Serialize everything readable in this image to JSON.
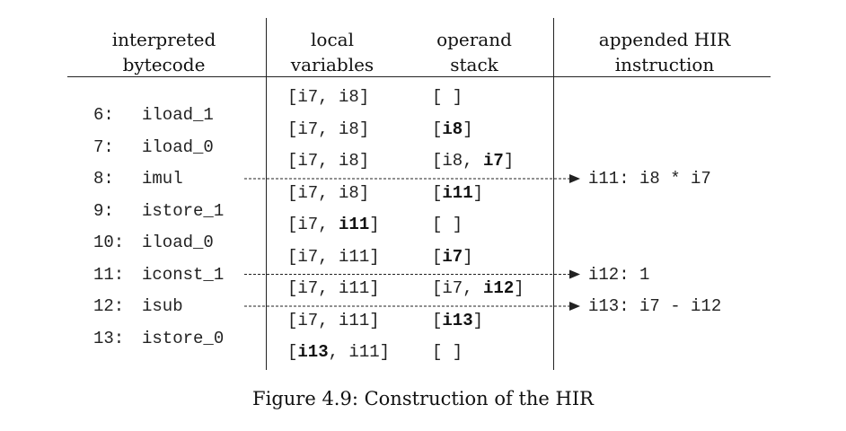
{
  "headers": {
    "bytecode": [
      "interpreted",
      "bytecode"
    ],
    "locals": [
      "local",
      "variables"
    ],
    "stack": [
      "operand",
      "stack"
    ],
    "hir": [
      "appended HIR",
      "instruction"
    ]
  },
  "bytecode": [
    {
      "idx": "6:",
      "op": "iload_1"
    },
    {
      "idx": "7:",
      "op": "iload_0"
    },
    {
      "idx": "8:",
      "op": "imul"
    },
    {
      "idx": "9:",
      "op": "istore_1"
    },
    {
      "idx": "10:",
      "op": "iload_0"
    },
    {
      "idx": "11:",
      "op": "iconst_1"
    },
    {
      "idx": "12:",
      "op": "isub"
    },
    {
      "idx": "13:",
      "op": "istore_0"
    }
  ],
  "states": [
    {
      "locals": [
        [
          "[i7, i8]",
          false
        ]
      ],
      "stack": [
        [
          "[ ]",
          false
        ]
      ]
    },
    {
      "locals": [
        [
          "[i7, i8]",
          false
        ]
      ],
      "stack": [
        [
          "[",
          false
        ],
        [
          "i8",
          true
        ],
        [
          "]",
          false
        ]
      ]
    },
    {
      "locals": [
        [
          "[i7, i8]",
          false
        ]
      ],
      "stack": [
        [
          "[i8, ",
          false
        ],
        [
          "i7",
          true
        ],
        [
          "]",
          false
        ]
      ]
    },
    {
      "locals": [
        [
          "[i7, i8]",
          false
        ]
      ],
      "stack": [
        [
          "[",
          false
        ],
        [
          "i11",
          true
        ],
        [
          "]",
          false
        ]
      ]
    },
    {
      "locals": [
        [
          "[i7, ",
          false
        ],
        [
          "i11",
          true
        ],
        [
          "]",
          false
        ]
      ],
      "stack": [
        [
          "[ ]",
          false
        ]
      ]
    },
    {
      "locals": [
        [
          "[i7, i11]",
          false
        ]
      ],
      "stack": [
        [
          "[",
          false
        ],
        [
          "i7",
          true
        ],
        [
          "]",
          false
        ]
      ]
    },
    {
      "locals": [
        [
          "[i7, i11]",
          false
        ]
      ],
      "stack": [
        [
          "[i7, ",
          false
        ],
        [
          "i12",
          true
        ],
        [
          "]",
          false
        ]
      ]
    },
    {
      "locals": [
        [
          "[i7, i11]",
          false
        ]
      ],
      "stack": [
        [
          "[",
          false
        ],
        [
          "i13",
          true
        ],
        [
          "]",
          false
        ]
      ]
    },
    {
      "locals": [
        [
          "[",
          false
        ],
        [
          "i13",
          true
        ],
        [
          ", i11]",
          false
        ]
      ],
      "stack": [
        [
          "[ ]",
          false
        ]
      ]
    }
  ],
  "hir": [
    {
      "text": "i11: i8 * i7",
      "from_bytecode": 2
    },
    {
      "text": "i12: 1",
      "from_bytecode": 5
    },
    {
      "text": "i13: i7 - i12",
      "from_bytecode": 6
    }
  ],
  "caption": "Figure 4.9: Construction of the HIR"
}
